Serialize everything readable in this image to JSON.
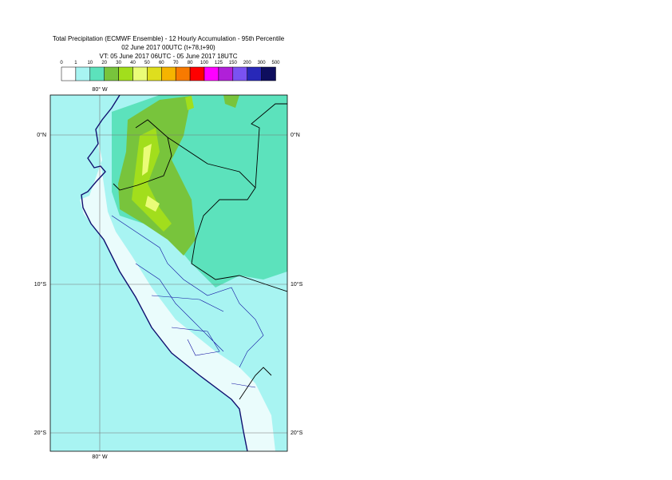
{
  "title": [
    "Total Precipitation (ECMWF Ensemble) - 12 Hourly Accumulation - 95th Percentile",
    "02 June 2017 00UTC (t+78,t+90)",
    "VT: 05 June 2017 06UTC - 05 June 2017 18UTC"
  ],
  "legend": {
    "levels": [
      0,
      1,
      10,
      20,
      30,
      40,
      50,
      60,
      70,
      80,
      100,
      125,
      150,
      200,
      300,
      500
    ],
    "colors": [
      "#ffffff",
      "#a8f4f2",
      "#5ce2bc",
      "#78c43c",
      "#a2de1c",
      "#eafc78",
      "#dede1e",
      "#f6b400",
      "#f87a00",
      "#ff0000",
      "#ff00ff",
      "#b020d8",
      "#7a52f2",
      "#2828b8",
      "#0e0e5e"
    ]
  },
  "map": {
    "lon_label": "80° W",
    "lat_labels": [
      "0°N",
      "10°S",
      "20°S"
    ]
  }
}
